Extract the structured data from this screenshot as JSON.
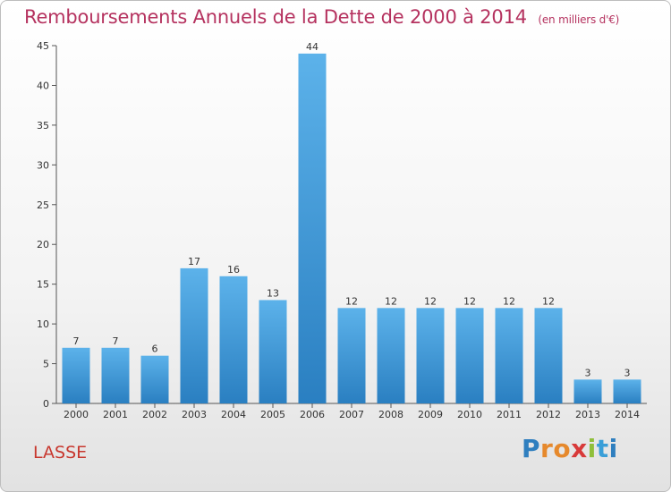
{
  "chart_data": {
    "type": "bar",
    "title": "Remboursements Annuels de la Dette de 2000 à 2014",
    "subtitle": "(en milliers d'€)",
    "categories": [
      "2000",
      "2001",
      "2002",
      "2003",
      "2004",
      "2005",
      "2006",
      "2007",
      "2008",
      "2009",
      "2010",
      "2011",
      "2012",
      "2013",
      "2014"
    ],
    "values": [
      7,
      7,
      6,
      17,
      16,
      13,
      44,
      12,
      12,
      12,
      12,
      12,
      12,
      3,
      3
    ],
    "ylim": [
      0,
      45
    ],
    "yticks": [
      0,
      5,
      10,
      15,
      20,
      25,
      30,
      35,
      40,
      45
    ],
    "xlabel": "",
    "ylabel": "",
    "grid": false,
    "colors": {
      "bar_top": "#5cb2ea",
      "bar_bottom": "#2a7fc1",
      "axis": "#555555"
    }
  },
  "footer": {
    "commune": "LASSE",
    "logo_letters": [
      "P",
      "r",
      "o",
      "x",
      "i",
      "t",
      "i"
    ],
    "logo_colors": [
      "#2f7fbf",
      "#e6892c",
      "#e6892c",
      "#d83a3a",
      "#8fbf3a",
      "#3a9fd8",
      "#2f7fbf"
    ]
  }
}
